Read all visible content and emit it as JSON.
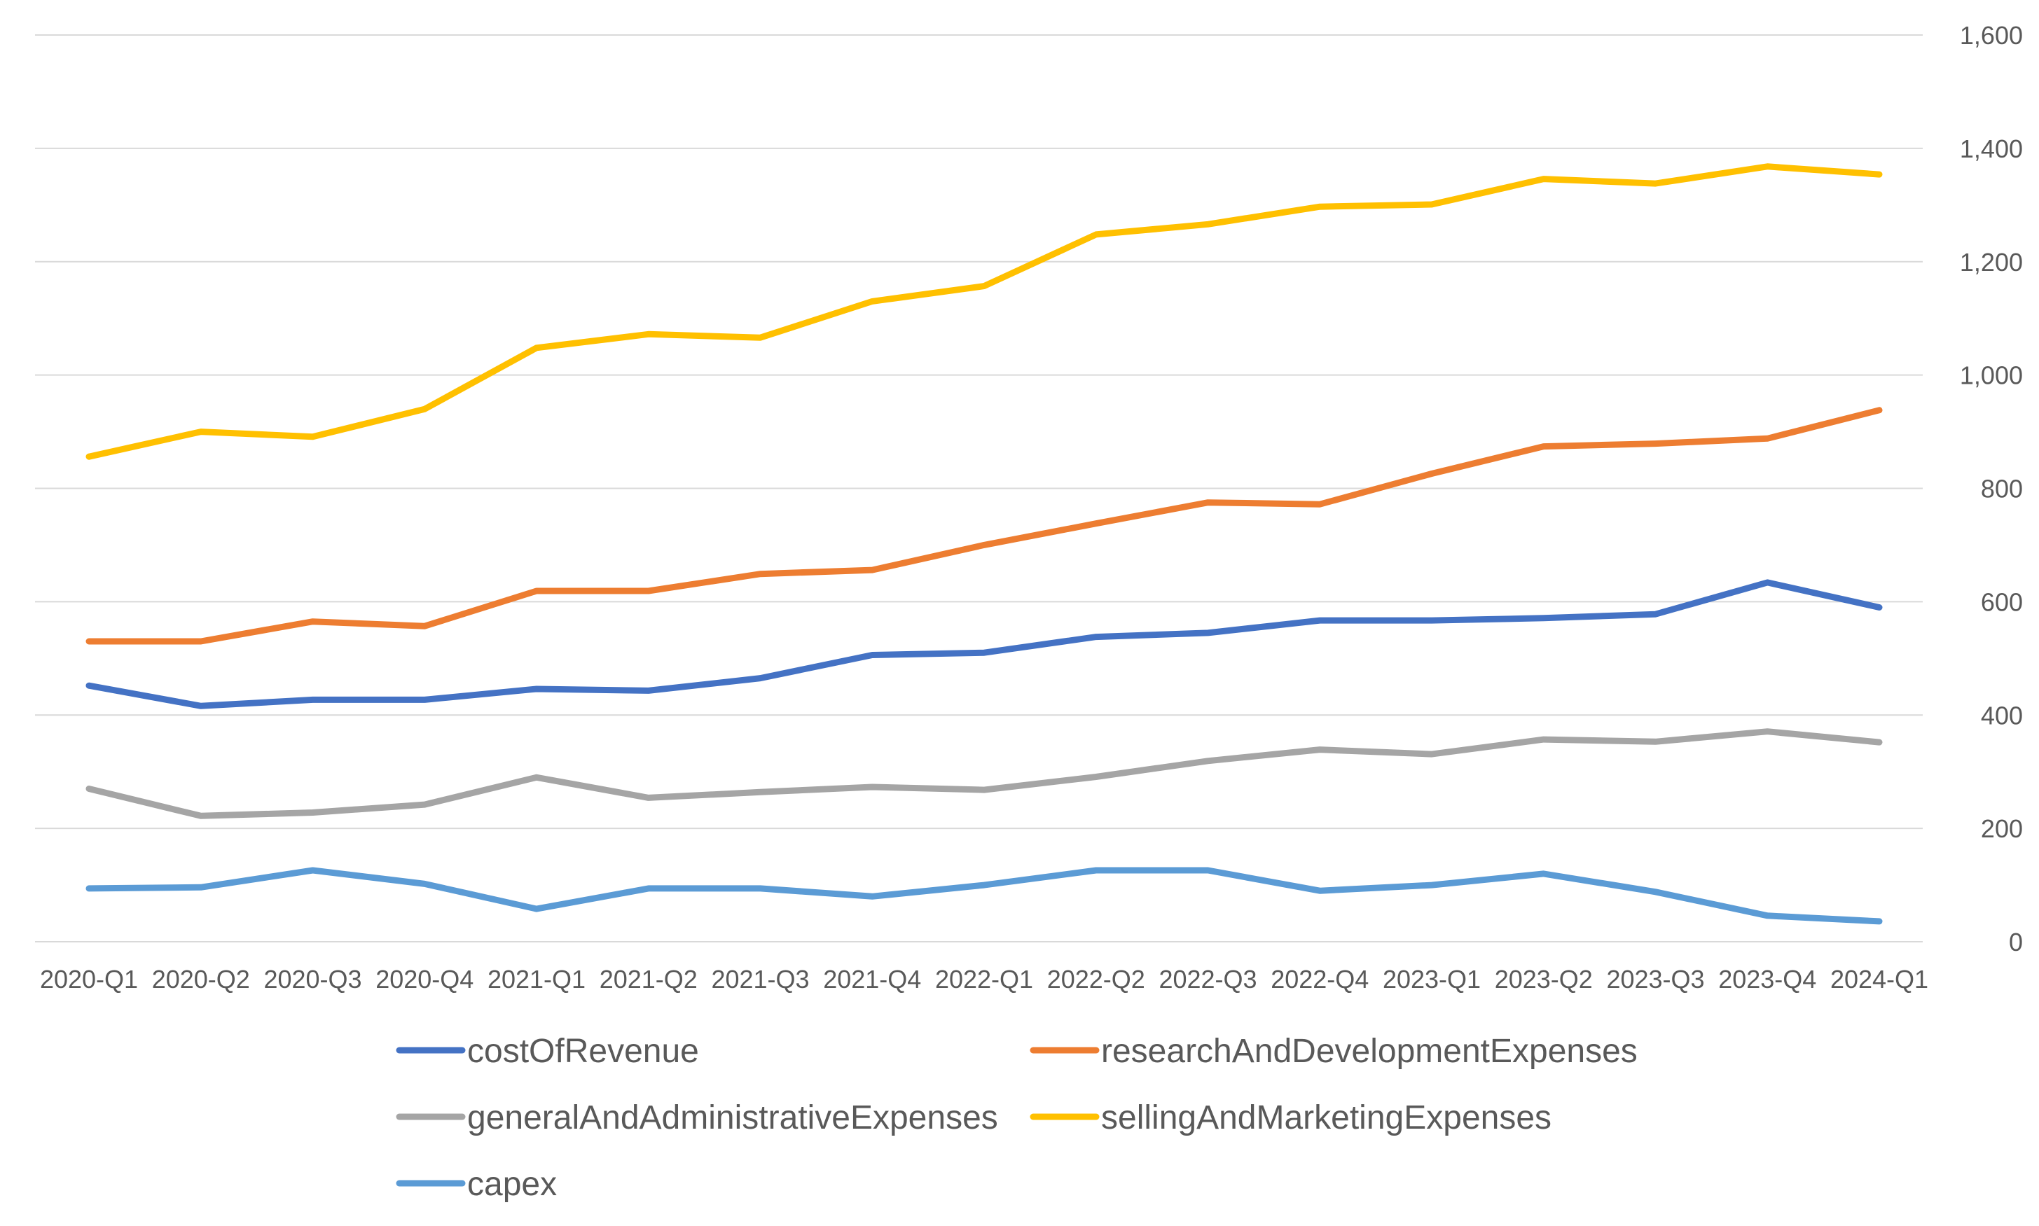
{
  "chart_data": {
    "type": "line",
    "title": "",
    "xlabel": "",
    "ylabel": "",
    "ylim": [
      0,
      1600
    ],
    "yticks": [
      0,
      200,
      400,
      600,
      800,
      1000,
      1200,
      1400,
      1600
    ],
    "ytick_labels": [
      "0",
      "200",
      "400",
      "600",
      "800",
      "1,000",
      "1,200",
      "1,400",
      "1,600"
    ],
    "y_axis_side": "right",
    "grid": true,
    "legend_position": "bottom",
    "categories": [
      "2020-Q1",
      "2020-Q2",
      "2020-Q3",
      "2020-Q4",
      "2021-Q1",
      "2021-Q2",
      "2021-Q3",
      "2021-Q4",
      "2022-Q1",
      "2022-Q2",
      "2022-Q3",
      "2022-Q4",
      "2023-Q1",
      "2023-Q2",
      "2023-Q3",
      "2023-Q4",
      "2024-Q1"
    ],
    "series": [
      {
        "name": "costOfRevenue",
        "color": "#4472C4",
        "values": [
          452,
          416,
          427,
          427,
          446,
          443,
          465,
          506,
          510,
          538,
          545,
          567,
          567,
          571,
          578,
          634,
          590
        ]
      },
      {
        "name": "researchAndDevelopmentExpenses",
        "color": "#ED7D31",
        "values": [
          530,
          530,
          565,
          557,
          619,
          619,
          649,
          656,
          700,
          738,
          775,
          772,
          826,
          874,
          879,
          888,
          938
        ]
      },
      {
        "name": "generalAndAdministrativeExpenses",
        "color": "#A5A5A5",
        "values": [
          270,
          222,
          228,
          242,
          290,
          254,
          264,
          273,
          268,
          291,
          319,
          339,
          331,
          357,
          353,
          371,
          352
        ]
      },
      {
        "name": "sellingAndMarketingExpenses",
        "color": "#FFC000",
        "values": [
          856,
          900,
          891,
          940,
          1048,
          1072,
          1066,
          1130,
          1157,
          1248,
          1266,
          1297,
          1301,
          1346,
          1338,
          1368,
          1354
        ]
      },
      {
        "name": "capex",
        "color": "#5B9BD5",
        "values": [
          94,
          96,
          126,
          102,
          58,
          94,
          94,
          80,
          100,
          126,
          126,
          90,
          100,
          120,
          88,
          46,
          36
        ]
      }
    ]
  }
}
